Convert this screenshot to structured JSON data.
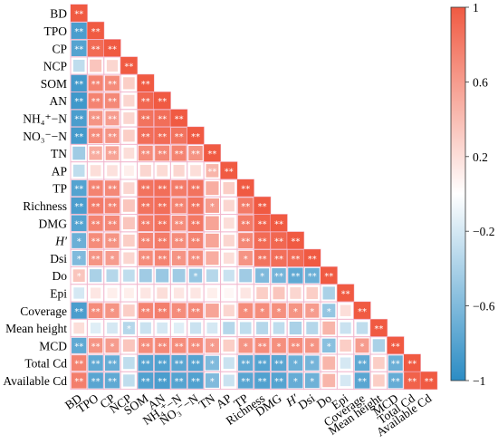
{
  "chart_data": {
    "type": "heatmap",
    "variables": [
      "BD",
      "TPO",
      "CP",
      "NCP",
      "SOM",
      "AN",
      "NH₄⁺−N",
      "NO₃⁻−N",
      "TN",
      "AP",
      "TP",
      "Richness",
      "DMG",
      "H′",
      "Dsi",
      "Do",
      "Epi",
      "Coverage",
      "Mean height",
      "MCD",
      "Total Cd",
      "Available Cd"
    ],
    "lower_triangle_rows": [
      [
        1
      ],
      [
        -0.85,
        1
      ],
      [
        -0.8,
        0.9,
        1
      ],
      [
        -0.3,
        0.35,
        0.25,
        1
      ],
      [
        -0.88,
        0.75,
        0.7,
        0.3,
        1
      ],
      [
        -0.9,
        0.75,
        0.72,
        0.25,
        0.92,
        1
      ],
      [
        -0.85,
        0.65,
        0.6,
        0.25,
        0.85,
        0.88,
        1
      ],
      [
        -0.88,
        0.7,
        0.65,
        0.3,
        0.88,
        0.9,
        0.85,
        1
      ],
      [
        -0.45,
        0.5,
        0.55,
        0.2,
        0.7,
        0.72,
        0.75,
        0.65,
        1
      ],
      [
        -0.3,
        0.2,
        0.18,
        0.1,
        0.25,
        0.22,
        0.25,
        0.2,
        0.45,
        1
      ],
      [
        -0.8,
        0.75,
        0.72,
        0.25,
        0.85,
        0.88,
        0.8,
        0.85,
        0.5,
        0.3,
        1
      ],
      [
        -0.85,
        0.8,
        0.75,
        0.35,
        0.85,
        0.88,
        0.75,
        0.85,
        0.6,
        0.25,
        0.8,
        1
      ],
      [
        -0.8,
        0.75,
        0.72,
        0.35,
        0.8,
        0.85,
        0.7,
        0.82,
        0.55,
        0.2,
        0.8,
        0.95,
        1
      ],
      [
        -0.7,
        0.7,
        0.65,
        0.3,
        0.75,
        0.8,
        0.7,
        0.75,
        0.55,
        0.25,
        0.72,
        0.9,
        0.92,
        1
      ],
      [
        -0.6,
        0.65,
        0.6,
        0.25,
        0.7,
        0.75,
        0.65,
        0.7,
        0.5,
        0.2,
        0.65,
        0.85,
        0.88,
        0.9,
        1
      ],
      [
        0.35,
        -0.4,
        -0.35,
        -0.3,
        -0.45,
        -0.48,
        -0.45,
        -0.5,
        -0.35,
        -0.25,
        -0.45,
        -0.6,
        -0.65,
        -0.75,
        -0.7,
        1
      ],
      [
        -0.2,
        0.15,
        0.1,
        0.1,
        0.15,
        0.2,
        0.15,
        0.15,
        0.1,
        0.05,
        0.15,
        0.3,
        0.35,
        0.25,
        0.3,
        -0.4,
        1
      ],
      [
        -0.85,
        0.7,
        0.65,
        0.3,
        0.75,
        0.78,
        0.7,
        0.72,
        0.55,
        0.25,
        0.7,
        0.7,
        0.68,
        0.65,
        0.6,
        -0.5,
        0.2,
        1
      ],
      [
        0.2,
        -0.15,
        -0.2,
        -0.35,
        -0.25,
        -0.2,
        -0.15,
        -0.25,
        -0.2,
        -0.35,
        -0.3,
        -0.35,
        -0.3,
        -0.4,
        -0.35,
        0.45,
        -0.25,
        -0.3,
        1
      ],
      [
        -0.75,
        0.65,
        0.6,
        0.35,
        0.7,
        0.72,
        0.7,
        0.7,
        0.6,
        0.3,
        0.65,
        0.7,
        0.68,
        0.7,
        0.65,
        -0.55,
        0.3,
        0.6,
        -0.4,
        1
      ],
      [
        0.75,
        -0.75,
        -0.72,
        -0.3,
        -0.8,
        -0.82,
        -0.78,
        -0.8,
        -0.6,
        -0.25,
        -0.75,
        -0.8,
        -0.78,
        -0.7,
        -0.65,
        0.45,
        -0.2,
        -0.75,
        0.3,
        -0.7,
        1
      ],
      [
        0.78,
        -0.78,
        -0.75,
        -0.3,
        -0.82,
        -0.85,
        -0.8,
        -0.82,
        -0.6,
        -0.25,
        -0.78,
        -0.82,
        -0.8,
        -0.72,
        -0.68,
        0.45,
        -0.2,
        -0.78,
        0.3,
        -0.72,
        0.95,
        1
      ]
    ],
    "significance_rows": [
      [
        "**"
      ],
      [
        "**",
        "**"
      ],
      [
        "**",
        "**",
        "**"
      ],
      [
        "",
        "",
        "",
        "**"
      ],
      [
        "**",
        "**",
        "**",
        "",
        "**"
      ],
      [
        "**",
        "**",
        "**",
        "",
        "**",
        "**"
      ],
      [
        "**",
        "**",
        "**",
        "",
        "**",
        "**",
        "**"
      ],
      [
        "**",
        "**",
        "**",
        "",
        "**",
        "**",
        "**",
        "**"
      ],
      [
        "",
        "**",
        "**",
        "",
        "**",
        "**",
        "**",
        "**",
        "**"
      ],
      [
        "",
        "",
        "",
        "",
        "",
        "",
        "",
        "",
        "**",
        "**"
      ],
      [
        "**",
        "**",
        "**",
        "",
        "**",
        "**",
        "**",
        "**",
        "",
        "",
        "**"
      ],
      [
        "**",
        "**",
        "**",
        "",
        "**",
        "**",
        "**",
        "**",
        "*",
        "",
        "**",
        "**"
      ],
      [
        "**",
        "**",
        "**",
        "",
        "**",
        "**",
        "**",
        "**",
        "",
        "",
        "**",
        "**",
        "**"
      ],
      [
        "*",
        "**",
        "**",
        "",
        "**",
        "**",
        "**",
        "**",
        "",
        "",
        "**",
        "**",
        "**",
        "**"
      ],
      [
        "*",
        "**",
        "*",
        "",
        "**",
        "**",
        "*",
        "**",
        "",
        "",
        "*",
        "**",
        "**",
        "**",
        "**"
      ],
      [
        "*",
        "",
        "",
        "",
        "",
        "",
        "",
        "*",
        "",
        "",
        "",
        "*",
        "**",
        "**",
        "**",
        "**"
      ],
      [
        "",
        "",
        "",
        "",
        "",
        "",
        "",
        "",
        "",
        "",
        "",
        "",
        "",
        "",
        "",
        "",
        "**"
      ],
      [
        "**",
        "**",
        "*",
        "",
        "**",
        "**",
        "*",
        "**",
        "",
        "",
        "*",
        "*",
        "*",
        "*",
        "*",
        "*",
        "",
        "**"
      ],
      [
        "",
        "",
        "",
        "*",
        "",
        "",
        "",
        "",
        "",
        "",
        "",
        "",
        "",
        "",
        "",
        "",
        "",
        "",
        "**"
      ],
      [
        "**",
        "**",
        "*",
        "",
        "**",
        "**",
        "**",
        "**",
        "*",
        "",
        "*",
        "**",
        "*",
        "**",
        "*",
        "*",
        "",
        "*",
        "",
        "**"
      ],
      [
        "**",
        "**",
        "**",
        "",
        "**",
        "**",
        "**",
        "**",
        "*",
        "",
        "**",
        "**",
        "**",
        "*",
        "*",
        "",
        "",
        "**",
        "",
        "**",
        "**"
      ],
      [
        "**",
        "**",
        "**",
        "",
        "**",
        "**",
        "**",
        "**",
        "*",
        "",
        "**",
        "**",
        "**",
        "*",
        "*",
        "",
        "",
        "**",
        "",
        "**",
        "**",
        "**"
      ]
    ],
    "color_scale": {
      "min": -1,
      "max": 1,
      "low_color": "#2b8cc4",
      "mid_color": "#ffffff",
      "high_color": "#f05a42",
      "ticks": [
        "1",
        "0.6",
        "0.2",
        "−0.2",
        "−0.6",
        "−1"
      ]
    },
    "grid": false,
    "legend": "right"
  }
}
